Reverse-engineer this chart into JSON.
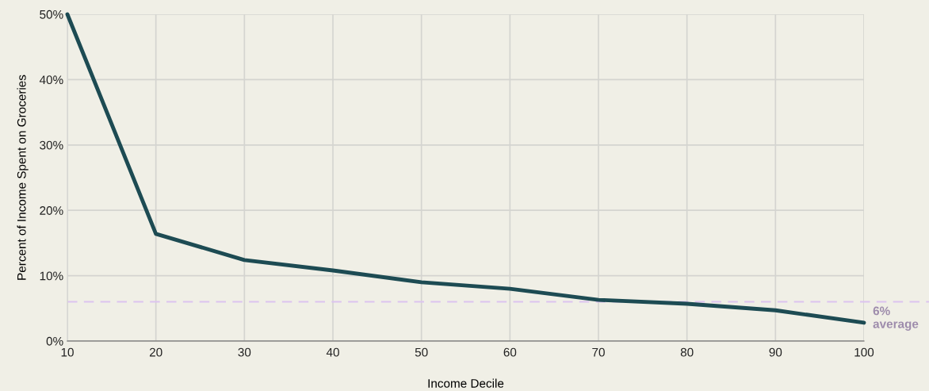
{
  "chart_data": {
    "type": "line",
    "xlabel": "Income Decile",
    "ylabel": "Percent of Income Spent on Groceries",
    "x": [
      10,
      20,
      30,
      40,
      50,
      60,
      70,
      80,
      90,
      100
    ],
    "series": [
      {
        "color": "#1d4b53",
        "values": [
          50,
          16.4,
          12.4,
          10.8,
          9.0,
          8.0,
          6.3,
          5.7,
          4.7,
          2.8
        ]
      }
    ],
    "xlim": [
      10,
      100
    ],
    "xticks": [
      10,
      20,
      30,
      40,
      50,
      60,
      70,
      80,
      90,
      100
    ],
    "ylim": [
      0,
      50
    ],
    "yticks": [
      {
        "value": 0,
        "label": "0%"
      },
      {
        "value": 10,
        "label": "10%"
      },
      {
        "value": 20,
        "label": "20%"
      },
      {
        "value": 30,
        "label": "30%"
      },
      {
        "value": 40,
        "label": "40%"
      },
      {
        "value": 50,
        "label": "50%"
      }
    ],
    "ref_lines": [
      {
        "axis": "y",
        "value": 6,
        "label": "6%\naverage",
        "color": "#dcc3ef",
        "line_style": "dashed"
      }
    ],
    "grid": true,
    "marker": "none",
    "line_style": "solid"
  }
}
